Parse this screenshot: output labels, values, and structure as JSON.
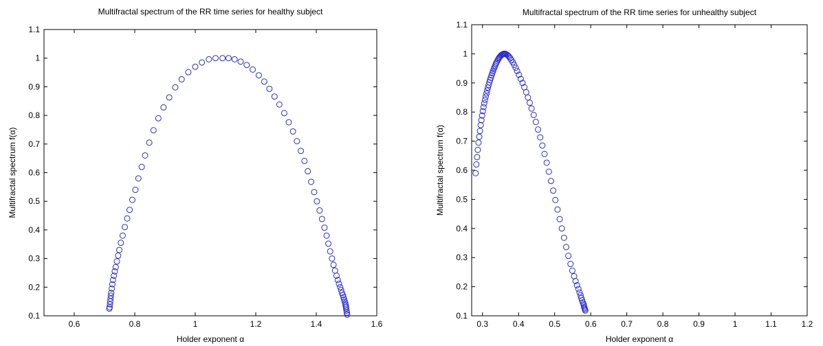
{
  "chart_data": [
    {
      "type": "scatter",
      "title": "Multifractal spectrum of the RR time series for healthy subject",
      "xlabel": "Holder exponent α",
      "ylabel": "Multifractal spectrum f(α)",
      "xlim": [
        0.5,
        1.6
      ],
      "ylim": [
        0.1,
        1.1
      ],
      "xticks": [
        0.6,
        0.8,
        1,
        1.2,
        1.4,
        1.6
      ],
      "xtick_labels": [
        "0.6",
        "0.8",
        "1",
        "1.2",
        "1.4",
        "1.6"
      ],
      "yticks": [
        0.1,
        0.2,
        0.3,
        0.4,
        0.5,
        0.6,
        0.7,
        0.8,
        0.9,
        1,
        1.1
      ],
      "ytick_labels": [
        "0.1",
        "0.2",
        "0.3",
        "0.4",
        "0.5",
        "0.6",
        "0.7",
        "0.8",
        "0.9",
        "1",
        "1.1"
      ],
      "marker": "circle",
      "color": "#2a2ad4",
      "grid": false,
      "series": [
        {
          "x": [
            0.716,
            0.717,
            0.718,
            0.719,
            0.72,
            0.721,
            0.722,
            0.724,
            0.726,
            0.728,
            0.731,
            0.734,
            0.737,
            0.741,
            0.745,
            0.749,
            0.754,
            0.76,
            0.767,
            0.775,
            0.783,
            0.792,
            0.802,
            0.812,
            0.823,
            0.834,
            0.848,
            0.862,
            0.878,
            0.895,
            0.914,
            0.934,
            0.955,
            0.977,
            1,
            1.022,
            1.045,
            1.067,
            1.09,
            1.11,
            1.13,
            1.15,
            1.17,
            1.19,
            1.21,
            1.228,
            1.245,
            1.262,
            1.278,
            1.294,
            1.309,
            1.323,
            1.336,
            1.349,
            1.361,
            1.372,
            1.383,
            1.393,
            1.402,
            1.411,
            1.419,
            1.427,
            1.434,
            1.44,
            1.446,
            1.452,
            1.457,
            1.462,
            1.467,
            1.471,
            1.475,
            1.479,
            1.482,
            1.485,
            1.488,
            1.49,
            1.492,
            1.494,
            1.496,
            1.497,
            1.498,
            1.499,
            1.5,
            1.501,
            1.502
          ],
          "y": [
            0.125,
            0.13,
            0.14,
            0.15,
            0.16,
            0.17,
            0.18,
            0.195,
            0.21,
            0.225,
            0.24,
            0.255,
            0.27,
            0.29,
            0.31,
            0.33,
            0.355,
            0.38,
            0.41,
            0.44,
            0.47,
            0.505,
            0.54,
            0.58,
            0.62,
            0.66,
            0.705,
            0.748,
            0.79,
            0.828,
            0.863,
            0.898,
            0.926,
            0.951,
            0.97,
            0.985,
            0.996,
            1,
            1,
            1,
            0.996,
            0.988,
            0.976,
            0.96,
            0.94,
            0.918,
            0.893,
            0.866,
            0.838,
            0.808,
            0.776,
            0.744,
            0.71,
            0.676,
            0.641,
            0.605,
            0.568,
            0.532,
            0.5,
            0.468,
            0.438,
            0.408,
            0.38,
            0.352,
            0.325,
            0.3,
            0.278,
            0.258,
            0.24,
            0.225,
            0.212,
            0.2,
            0.19,
            0.18,
            0.172,
            0.164,
            0.157,
            0.15,
            0.143,
            0.137,
            0.131,
            0.125,
            0.118,
            0.111,
            0.104
          ]
        }
      ]
    },
    {
      "type": "scatter",
      "title": "Multifractal spectrum of the RR time series for unhealthy subject",
      "xlabel": "Holder exponent α",
      "ylabel": "Multifractal spectrum f(α)",
      "xlim": [
        0.27,
        1.2
      ],
      "ylim": [
        0.1,
        1.1
      ],
      "xticks": [
        0.3,
        0.4,
        0.5,
        0.6,
        0.7,
        0.8,
        0.9,
        1,
        1.1,
        1.2
      ],
      "xtick_labels": [
        "0.3",
        "0.4",
        "0.5",
        "0.6",
        "0.7",
        "0.8",
        "0.9",
        "1",
        "1.1",
        "1.2"
      ],
      "yticks": [
        0.1,
        0.2,
        0.3,
        0.4,
        0.5,
        0.6,
        0.7,
        0.8,
        0.9,
        1,
        1.1
      ],
      "ytick_labels": [
        "0.1",
        "0.2",
        "0.3",
        "0.4",
        "0.5",
        "0.6",
        "0.7",
        "0.8",
        "0.9",
        "1",
        "1.1"
      ],
      "marker": "circle",
      "color": "#2a2ad4",
      "grid": false,
      "series": [
        {
          "x": [
            0.281,
            0.283,
            0.285,
            0.287,
            0.289,
            0.291,
            0.293,
            0.295,
            0.297,
            0.299,
            0.301,
            0.303,
            0.305,
            0.307,
            0.309,
            0.311,
            0.313,
            0.315,
            0.317,
            0.319,
            0.321,
            0.323,
            0.325,
            0.327,
            0.329,
            0.331,
            0.333,
            0.335,
            0.337,
            0.339,
            0.341,
            0.343,
            0.345,
            0.347,
            0.349,
            0.351,
            0.353,
            0.355,
            0.357,
            0.359,
            0.361,
            0.363,
            0.365,
            0.368,
            0.371,
            0.374,
            0.377,
            0.38,
            0.384,
            0.388,
            0.392,
            0.396,
            0.401,
            0.406,
            0.411,
            0.416,
            0.421,
            0.426,
            0.431,
            0.436,
            0.442,
            0.448,
            0.454,
            0.46,
            0.466,
            0.472,
            0.478,
            0.484,
            0.49,
            0.496,
            0.502,
            0.508,
            0.514,
            0.52,
            0.526,
            0.532,
            0.538,
            0.544,
            0.549,
            0.554,
            0.558,
            0.562,
            0.566,
            0.569,
            0.572,
            0.574,
            0.576,
            0.578,
            0.58,
            0.581,
            0.582,
            0.583,
            0.584,
            0.585
          ],
          "y": [
            0.59,
            0.62,
            0.645,
            0.67,
            0.695,
            0.715,
            0.735,
            0.755,
            0.772,
            0.788,
            0.803,
            0.817,
            0.83,
            0.842,
            0.853,
            0.864,
            0.874,
            0.884,
            0.893,
            0.902,
            0.91,
            0.918,
            0.926,
            0.933,
            0.94,
            0.947,
            0.953,
            0.959,
            0.965,
            0.97,
            0.975,
            0.98,
            0.984,
            0.988,
            0.991,
            0.994,
            0.996,
            0.998,
            0.999,
            1,
            1,
            1,
            0.999,
            0.997,
            0.994,
            0.99,
            0.985,
            0.979,
            0.971,
            0.962,
            0.952,
            0.941,
            0.928,
            0.914,
            0.9,
            0.885,
            0.868,
            0.85,
            0.832,
            0.812,
            0.79,
            0.766,
            0.74,
            0.713,
            0.685,
            0.656,
            0.626,
            0.595,
            0.563,
            0.53,
            0.498,
            0.465,
            0.432,
            0.4,
            0.368,
            0.336,
            0.306,
            0.278,
            0.255,
            0.236,
            0.219,
            0.205,
            0.192,
            0.18,
            0.17,
            0.161,
            0.153,
            0.146,
            0.14,
            0.135,
            0.13,
            0.126,
            0.122,
            0.118
          ]
        }
      ]
    }
  ]
}
